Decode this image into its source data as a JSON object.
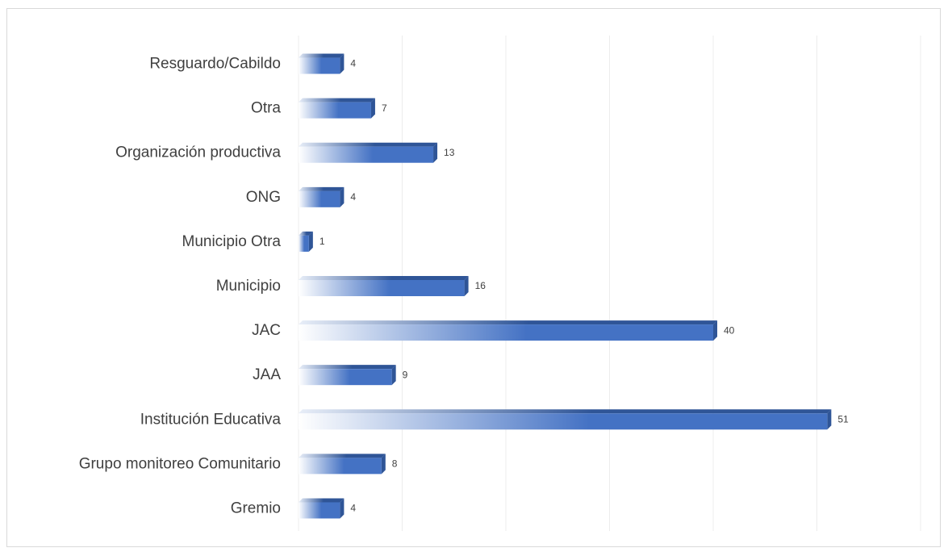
{
  "chart_data": {
    "type": "bar",
    "orientation": "horizontal",
    "categories": [
      "Resguardo/Cabildo",
      "Otra",
      "Organización productiva",
      "ONG",
      "Municipio Otra",
      "Municipio",
      "JAC",
      "JAA",
      "Institución Educativa",
      "Grupo monitoreo Comunitario",
      "Gremio"
    ],
    "values": [
      4,
      7,
      13,
      4,
      1,
      16,
      40,
      9,
      51,
      8,
      4
    ],
    "color": "#4472c4",
    "xlim": [
      0,
      60
    ],
    "xticks": [
      0,
      10,
      20,
      30,
      40,
      50,
      60
    ],
    "grid": true
  }
}
